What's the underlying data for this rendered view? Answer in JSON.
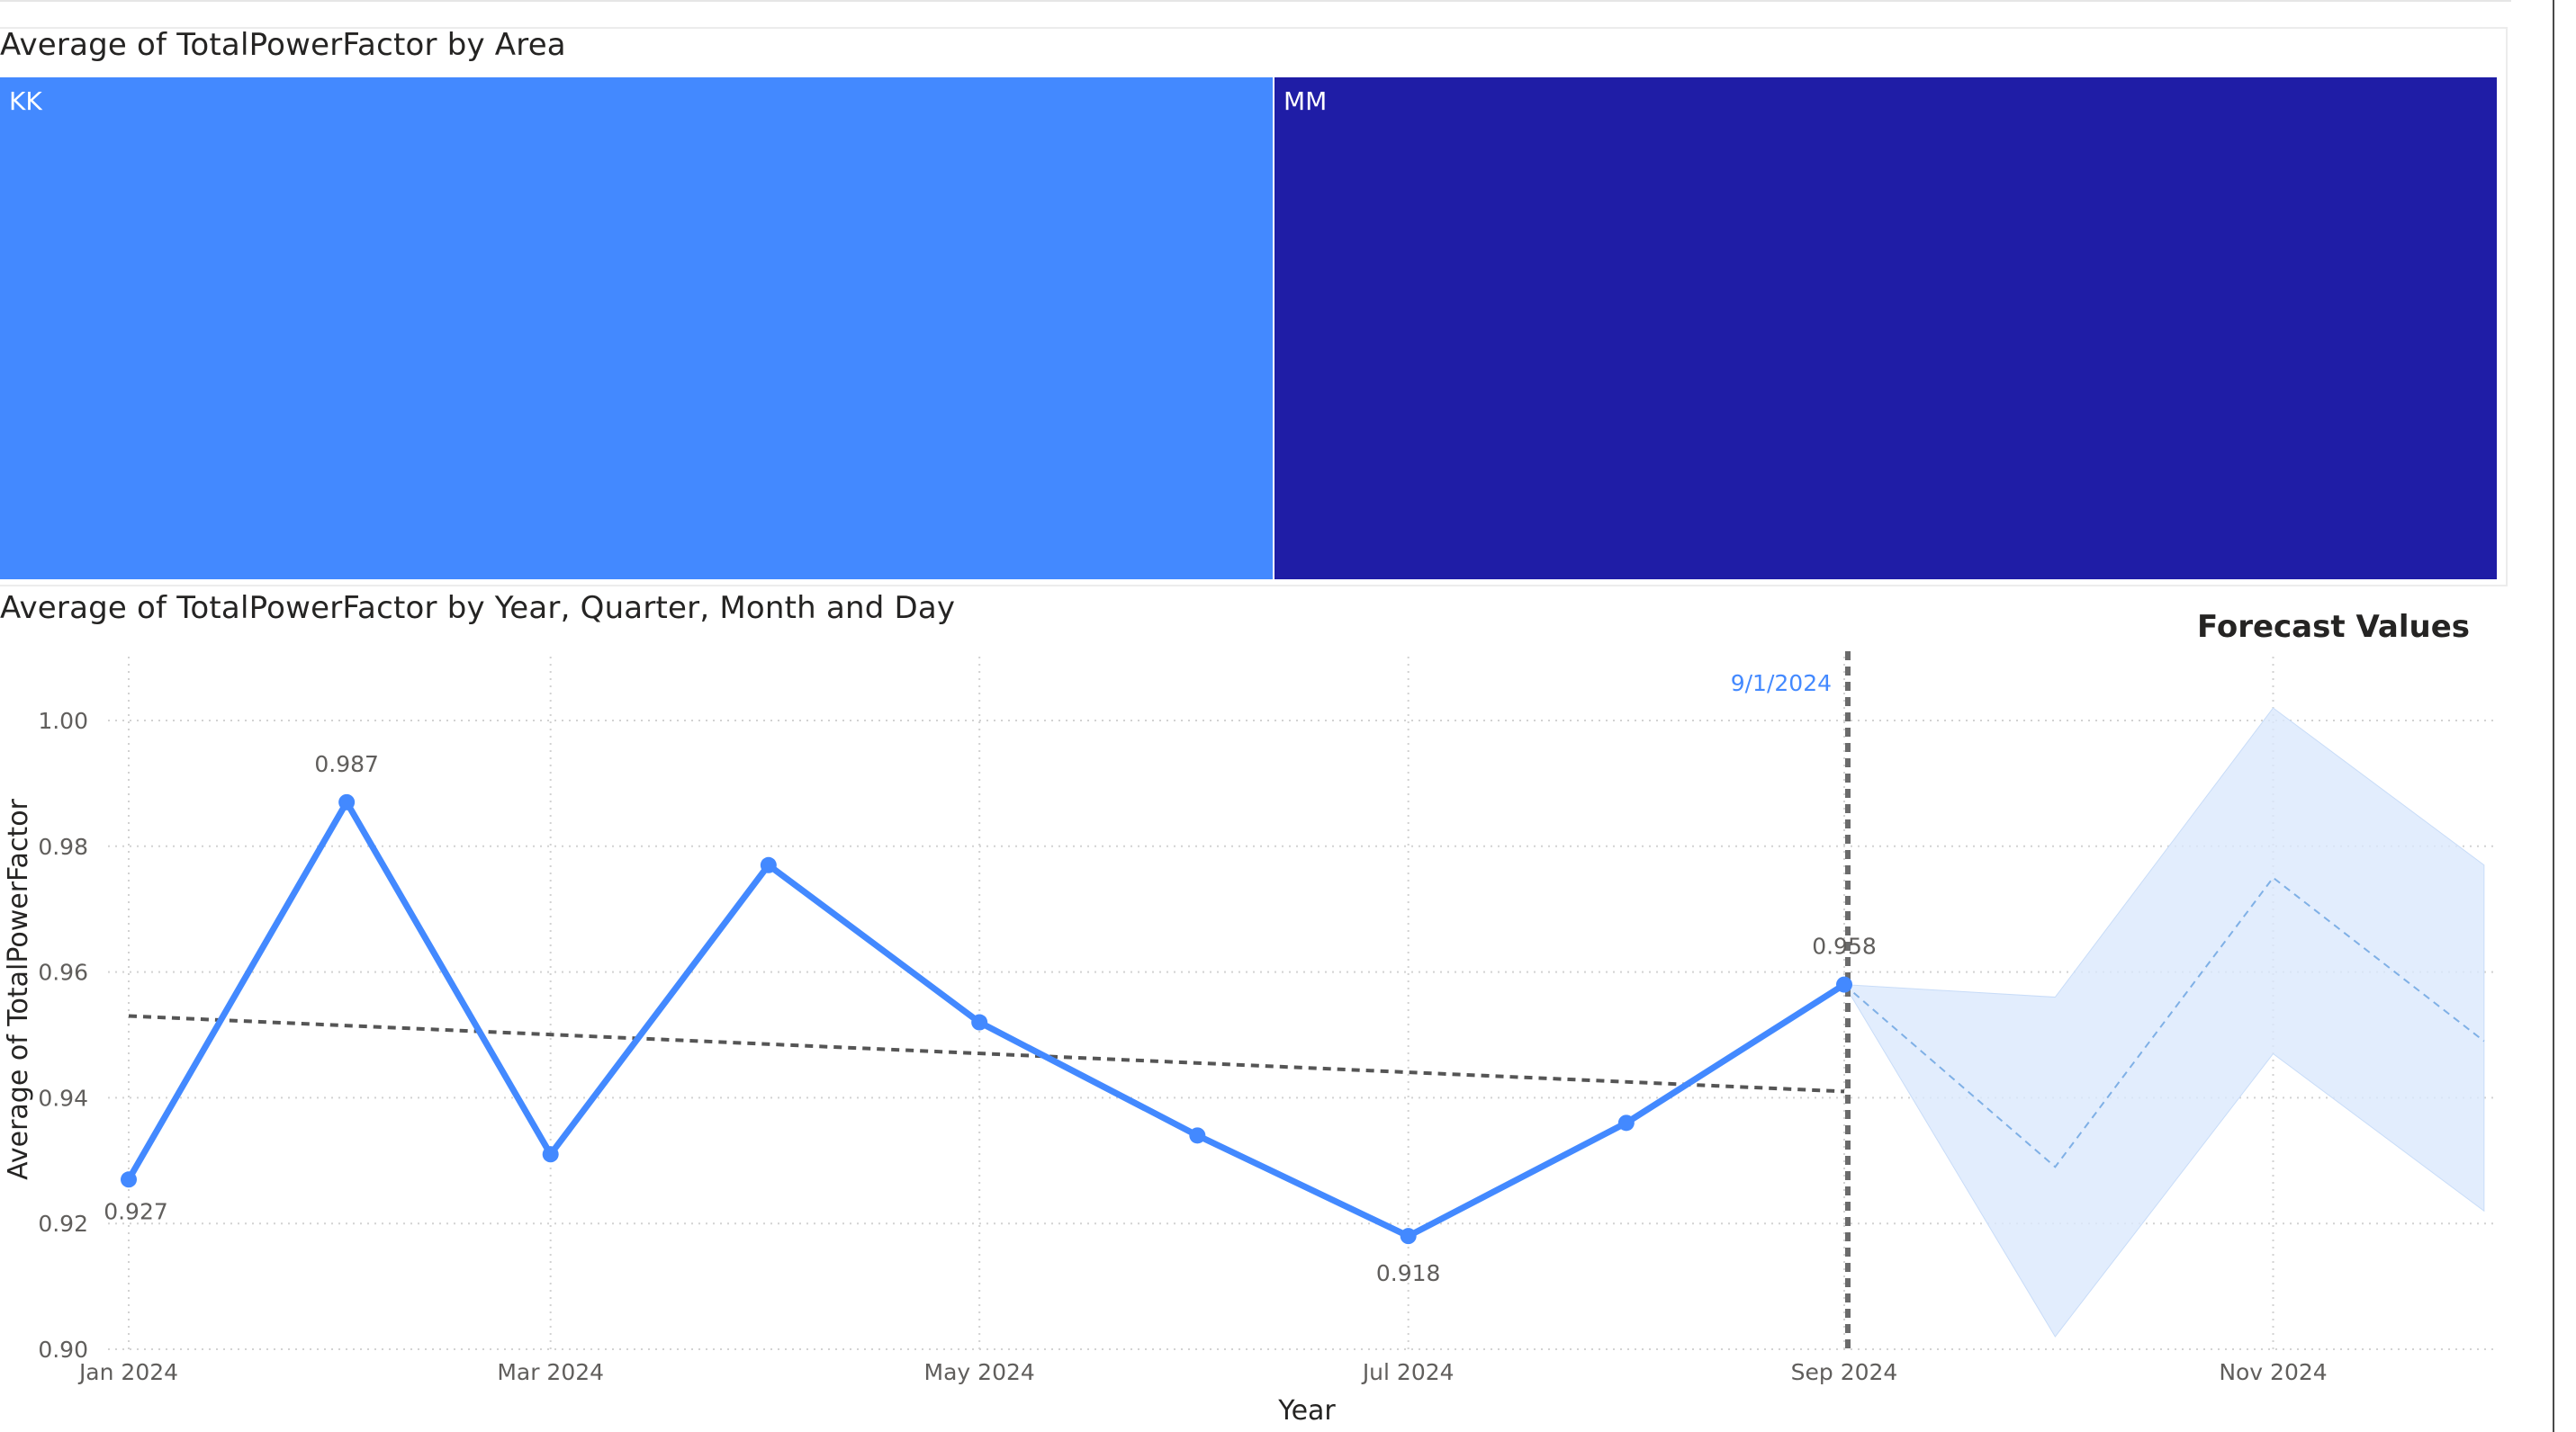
{
  "treemap_title": "Average of TotalPowerFactor by Area",
  "line_title": "Average of TotalPowerFactor by Year, Quarter, Month and Day",
  "forecast_label": "Forecast Values",
  "chart_data": [
    {
      "type": "treemap",
      "title": "Average of TotalPowerFactor by Area",
      "categories": [
        "KK",
        "MM"
      ],
      "colors": [
        "#4389FF",
        "#1F1DA6"
      ]
    },
    {
      "type": "line",
      "title": "Average of TotalPowerFactor by Year, Quarter, Month and Day",
      "xlabel": "Year",
      "ylabel": "Average of TotalPowerFactor",
      "ylim": [
        0.9,
        1.0
      ],
      "y_ticks": [
        "0.90",
        "0.92",
        "0.94",
        "0.96",
        "0.98",
        "1.00"
      ],
      "x_ticks": [
        "Jan 2024",
        "Mar 2024",
        "May 2024",
        "Jul 2024",
        "Sep 2024",
        "Nov 2024"
      ],
      "grid": true,
      "series": [
        {
          "x": [
            "2024-01-01",
            "2024-02-01",
            "2024-03-01",
            "2024-04-01",
            "2024-05-01",
            "2024-06-01",
            "2024-07-01",
            "2024-08-01",
            "2024-09-01"
          ],
          "values": [
            0.927,
            0.987,
            0.931,
            0.977,
            0.952,
            0.934,
            0.918,
            0.936,
            0.958
          ],
          "color": "#4389FF"
        }
      ],
      "data_labels": [
        "0.927",
        "0.987",
        "0.918",
        "0.958"
      ],
      "trend_line": {
        "start": 0.953,
        "end": 0.941
      },
      "reference_line": {
        "label": "9/1/2024"
      },
      "forecast": {
        "x": [
          "2024-09-01",
          "2024-10-01",
          "2024-11-01",
          "2024-12-01"
        ],
        "values": [
          0.958,
          0.929,
          0.975,
          0.949
        ],
        "upper": [
          0.958,
          0.956,
          1.002,
          0.977
        ],
        "lower": [
          0.958,
          0.902,
          0.947,
          0.922
        ]
      }
    }
  ]
}
